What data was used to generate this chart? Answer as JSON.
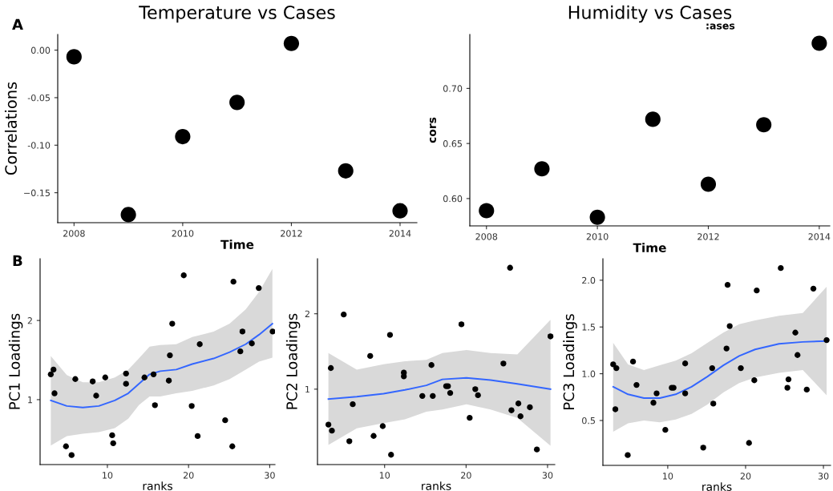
{
  "chart_data": [
    {
      "type": "scatter",
      "title": "Temperature vs Cases",
      "xlabel": "Time",
      "ylabel": "Correlations",
      "annotations": [
        "A"
      ],
      "grid": false,
      "legend": false,
      "xlim": [
        2007.7,
        2014.31
      ],
      "xticks": [
        2008,
        2010,
        2012,
        2014
      ],
      "ylim": [
        -0.1815,
        0.0165
      ],
      "yticks": [
        {
          "value": 0.0,
          "label": "0.00"
        },
        {
          "value": -0.05,
          "label": "-0.05"
        },
        {
          "value": -0.1,
          "label": "-0.10"
        },
        {
          "value": -0.15,
          "label": "−0.15"
        }
      ],
      "series": [
        {
          "marker": "circle",
          "color": "#000000",
          "x": [
            2008,
            2009,
            2010,
            2011,
            2012,
            2013,
            2014
          ],
          "values": [
            -0.007,
            -0.173,
            -0.091,
            -0.055,
            0.007,
            -0.127,
            -0.169
          ]
        }
      ]
    },
    {
      "type": "scatter",
      "title": "Humidity vs Cases",
      "xlabel": "Time",
      "ylabel": "cors",
      "annotations": [
        ":ases"
      ],
      "grid": false,
      "legend": false,
      "xlim": [
        2007.7,
        2014.19
      ],
      "xticks": [
        2008,
        2010,
        2012,
        2014
      ],
      "ylim": [
        0.5752,
        0.749
      ],
      "yticks": [
        {
          "value": 0.6,
          "label": "0.60"
        },
        {
          "value": 0.65,
          "label": "0.65"
        },
        {
          "value": 0.7,
          "label": "0.70"
        }
      ],
      "series": [
        {
          "marker": "circle",
          "color": "#000000",
          "x": [
            2008,
            2009,
            2010,
            2011,
            2012,
            2013,
            2014
          ],
          "values": [
            0.589,
            0.627,
            0.583,
            0.672,
            0.613,
            0.667,
            0.741
          ]
        }
      ]
    },
    {
      "type": "scatter",
      "xlabel": "ranks",
      "ylabel": "PC1 Loadings",
      "annotations": [
        "B"
      ],
      "grid": false,
      "legend": false,
      "xlim": [
        1.71,
        30.65
      ],
      "xticks": [
        10,
        20,
        30
      ],
      "ylim": [
        0.18,
        2.78
      ],
      "yticks": [
        1,
        2
      ],
      "series": [
        {
          "marker": "circle",
          "color": "#000000",
          "x": [
            3.03,
            3.36,
            3.49,
            4.9,
            5.59,
            6.05,
            8.19,
            8.62,
            9.74,
            10.59,
            10.72,
            12.3,
            12.3,
            14.57,
            15.69,
            15.86,
            17.57,
            17.7,
            17.99,
            19.41,
            20.39,
            21.12,
            21.38,
            24.51,
            25.39,
            25.53,
            26.38,
            26.64,
            27.8,
            28.65,
            30.36
          ],
          "values": [
            1.32,
            1.38,
            1.08,
            0.41,
            0.3,
            1.26,
            1.23,
            1.05,
            1.28,
            0.55,
            0.45,
            1.33,
            1.2,
            1.28,
            1.32,
            0.93,
            1.24,
            1.56,
            1.96,
            2.57,
            0.92,
            0.54,
            1.7,
            0.74,
            0.41,
            2.49,
            1.61,
            1.86,
            1.71,
            2.41,
            1.86
          ]
        },
        {
          "type": "line",
          "marker": "none",
          "color": "#3366ff",
          "x": [
            3.03,
            5.0,
            6.97,
            8.95,
            10.92,
            12.57,
            13.88,
            15.2,
            16.51,
            18.49,
            20.46,
            23.09,
            25.07,
            27.04,
            28.68,
            30.33
          ],
          "values": [
            0.99,
            0.92,
            0.9,
            0.92,
            0.99,
            1.08,
            1.2,
            1.32,
            1.36,
            1.38,
            1.45,
            1.52,
            1.6,
            1.7,
            1.82,
            1.96
          ],
          "lower": [
            0.42,
            0.54,
            0.57,
            0.59,
            0.64,
            0.76,
            0.93,
            1.04,
            1.04,
            1.08,
            1.11,
            1.18,
            1.26,
            1.38,
            1.48,
            1.53
          ],
          "upper": [
            1.55,
            1.31,
            1.22,
            1.22,
            1.28,
            1.38,
            1.52,
            1.67,
            1.69,
            1.7,
            1.79,
            1.86,
            1.96,
            2.14,
            2.36,
            2.65
          ]
        }
      ]
    },
    {
      "type": "scatter",
      "xlabel": "ranks",
      "ylabel": "PC2 Loadings",
      "grid": false,
      "legend": false,
      "xlim": [
        1.76,
        30.89
      ],
      "xticks": [
        10,
        20,
        30
      ],
      "ylim": [
        0.0,
        2.73
      ],
      "yticks": [
        1,
        2
      ],
      "series": [
        {
          "marker": "circle",
          "color": "#000000",
          "x": [
            3.1,
            3.4,
            3.53,
            4.98,
            5.67,
            6.09,
            8.23,
            8.65,
            9.77,
            10.66,
            10.79,
            12.36,
            12.36,
            14.63,
            15.75,
            15.91,
            17.55,
            17.78,
            18.05,
            19.43,
            20.44,
            21.13,
            21.46,
            24.58,
            25.4,
            25.57,
            26.42,
            26.68,
            27.83,
            28.69,
            30.36
          ],
          "values": [
            0.53,
            1.28,
            0.45,
            1.99,
            0.31,
            0.8,
            1.44,
            0.38,
            0.51,
            1.72,
            0.13,
            1.22,
            1.17,
            0.91,
            1.32,
            0.91,
            1.04,
            1.04,
            0.95,
            1.86,
            0.62,
            1.0,
            0.92,
            1.34,
            2.61,
            0.72,
            0.81,
            0.64,
            0.76,
            0.2,
            1.7
          ]
        },
        {
          "type": "line",
          "marker": "none",
          "color": "#3366ff",
          "x": [
            3.1,
            6.58,
            9.87,
            12.5,
            15.12,
            17.09,
            20.05,
            23.0,
            26.29,
            30.36
          ],
          "values": [
            0.87,
            0.9,
            0.94,
            0.99,
            1.05,
            1.13,
            1.15,
            1.12,
            1.07,
            1.0
          ],
          "lower": [
            0.26,
            0.48,
            0.55,
            0.6,
            0.7,
            0.73,
            0.8,
            0.73,
            0.62,
            0.25
          ],
          "upper": [
            1.48,
            1.26,
            1.33,
            1.37,
            1.39,
            1.48,
            1.52,
            1.48,
            1.46,
            1.92
          ]
        }
      ]
    },
    {
      "type": "scatter",
      "xlabel": "ranks",
      "ylabel": "PC3 Loadings",
      "grid": false,
      "legend": false,
      "xlim": [
        1.67,
        30.92
      ],
      "xticks": [
        10,
        20,
        30
      ],
      "ylim": [
        0.02,
        2.23
      ],
      "yticks": [
        {
          "value": 0.5,
          "label": "0.5"
        },
        {
          "value": 1.0,
          "label": "1.0"
        },
        {
          "value": 1.5,
          "label": "1.5"
        },
        {
          "value": 2.0,
          "label": "2.0"
        }
      ],
      "series": [
        {
          "marker": "circle",
          "color": "#000000",
          "x": [
            2.99,
            3.4,
            3.27,
            4.86,
            5.54,
            5.99,
            8.16,
            8.57,
            9.69,
            10.51,
            10.75,
            12.24,
            12.24,
            14.56,
            15.71,
            15.85,
            17.55,
            17.69,
            17.96,
            19.39,
            20.44,
            21.12,
            21.43,
            24.52,
            25.37,
            25.51,
            26.39,
            26.67,
            27.86,
            28.71,
            30.41
          ],
          "values": [
            1.1,
            1.06,
            0.62,
            0.13,
            1.13,
            0.88,
            0.69,
            0.79,
            0.4,
            0.85,
            0.85,
            1.11,
            0.79,
            0.21,
            1.06,
            0.68,
            1.27,
            1.95,
            1.51,
            1.06,
            0.26,
            0.93,
            1.89,
            2.13,
            0.85,
            0.94,
            1.44,
            1.2,
            0.83,
            1.91,
            1.36
          ]
        },
        {
          "type": "line",
          "marker": "none",
          "color": "#3366ff",
          "x": [
            2.99,
            4.9,
            6.94,
            8.98,
            11.02,
            13.06,
            15.1,
            17.14,
            19.18,
            21.22,
            24.29,
            27.35,
            30.41
          ],
          "values": [
            0.86,
            0.78,
            0.74,
            0.74,
            0.78,
            0.86,
            0.97,
            1.09,
            1.19,
            1.26,
            1.32,
            1.34,
            1.35
          ],
          "lower": [
            0.38,
            0.47,
            0.5,
            0.48,
            0.51,
            0.57,
            0.67,
            0.8,
            0.9,
            0.96,
            1.01,
            1.04,
            0.77
          ],
          "upper": [
            1.33,
            1.1,
            1.04,
            1.09,
            1.14,
            1.22,
            1.33,
            1.44,
            1.53,
            1.57,
            1.62,
            1.65,
            1.93
          ]
        }
      ]
    }
  ]
}
